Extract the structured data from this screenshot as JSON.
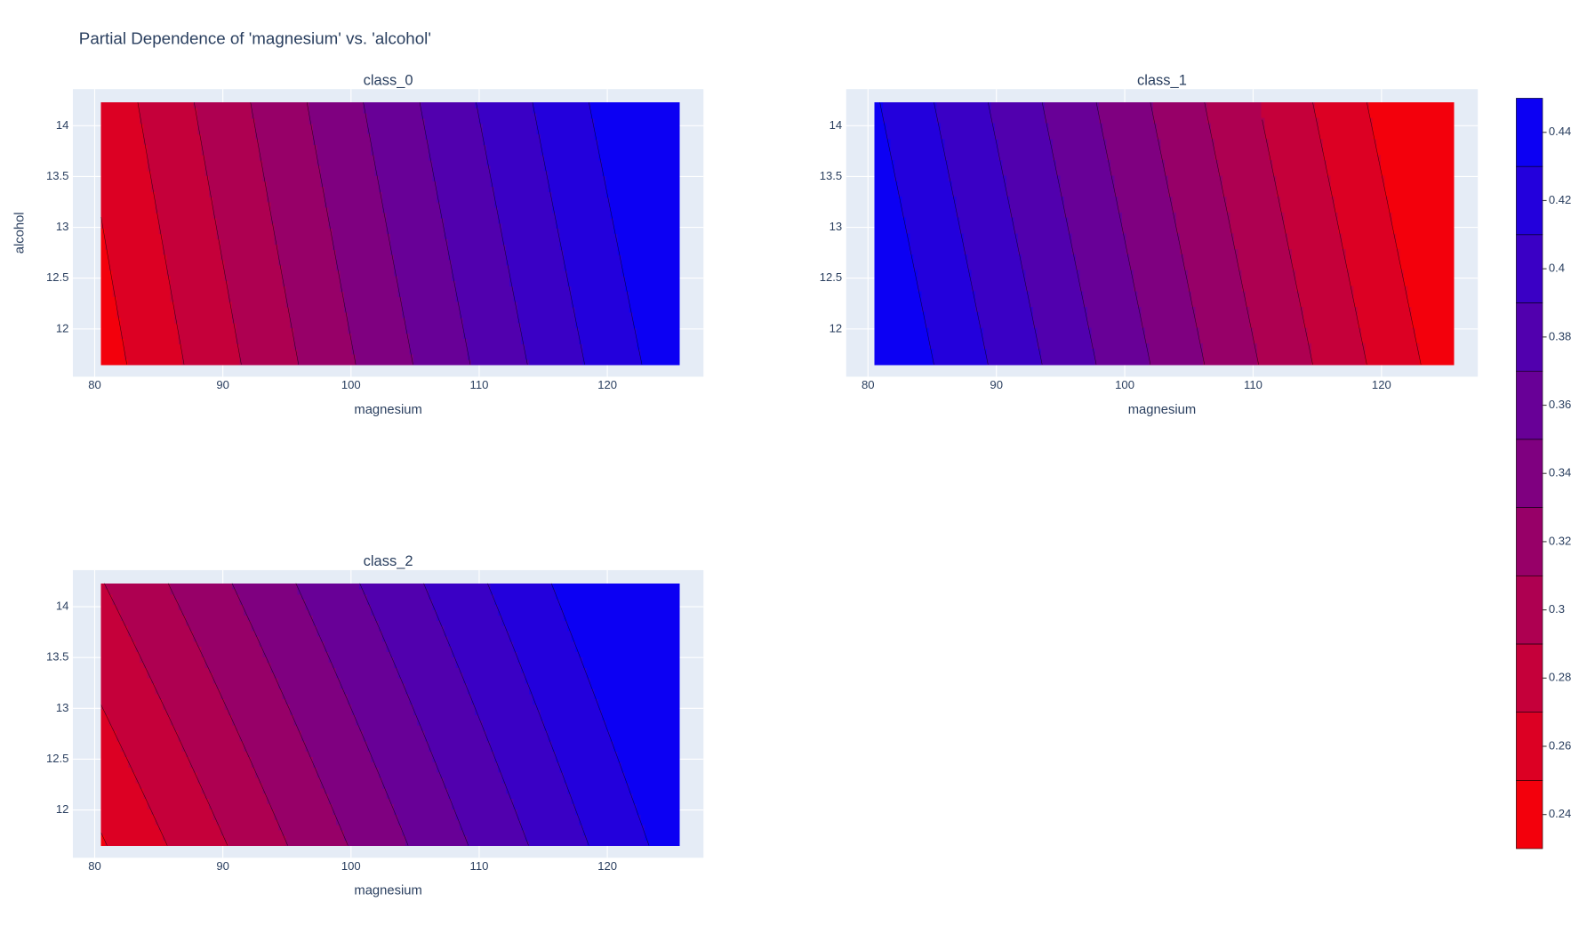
{
  "title": "Partial Dependence of 'magnesium' vs. 'alcohol'",
  "contours": {
    "start": 0.23,
    "end": 0.45,
    "size": 0.02
  },
  "colorbar": {
    "range": [
      0.23,
      0.45
    ],
    "colors": [
      "#ff0000",
      "#0000ff"
    ],
    "ticks": [
      0.24,
      0.26,
      0.28,
      0.3,
      0.32,
      0.34,
      0.36,
      0.38,
      0.4,
      0.42,
      0.44
    ]
  },
  "chart_data": [
    {
      "type": "contour",
      "title": "class_0",
      "x_label": "magnesium",
      "y_label": "alcohol",
      "x": [
        80.5,
        125.6
      ],
      "y": [
        11.65,
        14.23
      ],
      "z": [
        [
          0.241,
          0.443
        ],
        [
          0.257,
          0.462
        ]
      ],
      "xlim": [
        78.3,
        127.5
      ],
      "ylim": [
        11.53,
        14.36
      ],
      "xticks": [
        80,
        90,
        100,
        110,
        120
      ],
      "yticks": [
        12,
        12.5,
        13,
        13.5,
        14
      ],
      "grid": true
    },
    {
      "type": "contour",
      "title": "class_1",
      "x_label": "magnesium",
      "x": [
        80.5,
        125.6
      ],
      "y": [
        11.65,
        14.23
      ],
      "z": [
        [
          0.452,
          0.238
        ],
        [
          0.432,
          0.218
        ]
      ],
      "xlim": [
        78.3,
        127.5
      ],
      "ylim": [
        11.53,
        14.36
      ],
      "xticks": [
        80,
        90,
        100,
        110,
        120
      ],
      "yticks": [
        12,
        12.5,
        13,
        13.5,
        14
      ],
      "grid": true
    },
    {
      "type": "contour",
      "title": "class_2",
      "x_label": "magnesium",
      "x": [
        80.5,
        125.6
      ],
      "y": [
        11.65,
        14.23
      ],
      "z": [
        [
          0.248,
          0.44
        ],
        [
          0.289,
          0.47
        ]
      ],
      "xlim": [
        78.3,
        127.5
      ],
      "ylim": [
        11.53,
        14.36
      ],
      "xticks": [
        80,
        90,
        100,
        110,
        120
      ],
      "yticks": [
        12,
        12.5,
        13,
        13.5,
        14
      ],
      "grid": true
    }
  ]
}
